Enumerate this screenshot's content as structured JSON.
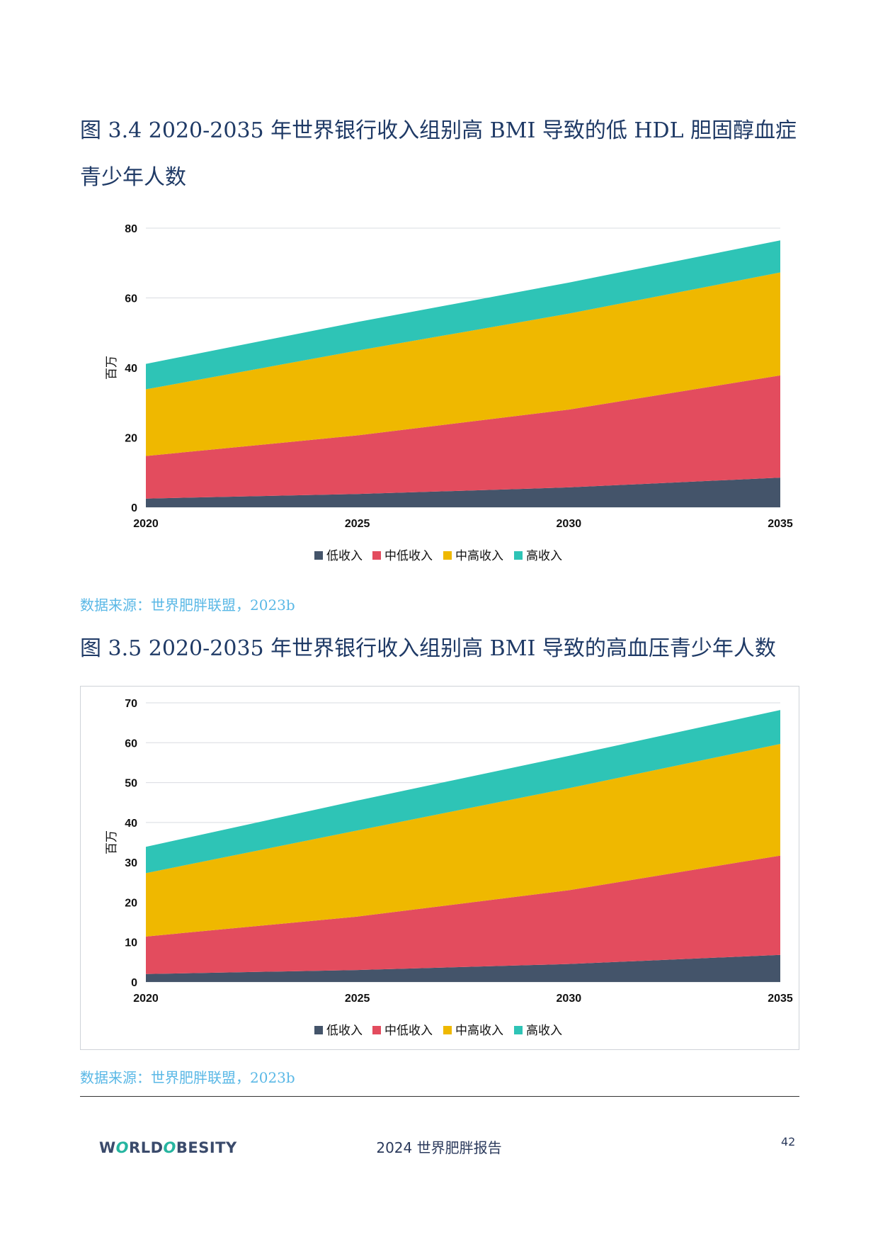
{
  "figures": [
    {
      "title": "图 3.4 2020-2035 年世界银行收入组别高 BMI 导致的低 HDL 胆固醇血症青少年人数",
      "source": "数据来源：世界肥胖联盟，2023b"
    },
    {
      "title": "图 3.5 2020-2035 年世界银行收入组别高 BMI 导致的高血压青少年人数",
      "source": "数据来源：世界肥胖联盟，2023b"
    }
  ],
  "chart_data": [
    {
      "type": "area",
      "stacked": true,
      "x": [
        2020,
        2025,
        2030,
        2035
      ],
      "ylabel": "百万",
      "ylim": [
        0,
        80
      ],
      "yticks": [
        0,
        20,
        40,
        60,
        80
      ],
      "grid": true,
      "legend_position": "bottom",
      "series": [
        {
          "name": "低收入",
          "color": "#44546a",
          "values": [
            2.5,
            3.8,
            5.7,
            8.5
          ]
        },
        {
          "name": "中低收入",
          "color": "#e34c5e",
          "values": [
            12.2,
            16.8,
            22.3,
            29.3
          ]
        },
        {
          "name": "中高收入",
          "color": "#efb800",
          "values": [
            19.1,
            24.3,
            27.5,
            29.5
          ]
        },
        {
          "name": "高收入",
          "color": "#2ec4b6",
          "values": [
            7.3,
            8.2,
            8.9,
            9.2
          ]
        }
      ]
    },
    {
      "type": "area",
      "stacked": true,
      "x": [
        2020,
        2025,
        2030,
        2035
      ],
      "ylabel": "百万",
      "ylim": [
        0,
        70
      ],
      "yticks": [
        0,
        10,
        20,
        30,
        40,
        50,
        60,
        70
      ],
      "grid": true,
      "legend_position": "bottom",
      "series": [
        {
          "name": "低收入",
          "color": "#44546a",
          "values": [
            2.0,
            3.0,
            4.5,
            6.8
          ]
        },
        {
          "name": "中低收入",
          "color": "#e34c5e",
          "values": [
            9.4,
            13.4,
            18.5,
            24.9
          ]
        },
        {
          "name": "中高收入",
          "color": "#efb800",
          "values": [
            15.9,
            21.6,
            25.6,
            28.0
          ]
        },
        {
          "name": "高收入",
          "color": "#2ec4b6",
          "values": [
            6.6,
            7.5,
            8.1,
            8.5
          ]
        }
      ]
    }
  ],
  "footer": {
    "logo_left": "W",
    "logo_o1": "O",
    "logo_mid": "RLD ",
    "logo_o2": "O",
    "logo_right": "BESITY",
    "report": "2024 世界肥胖报告",
    "page": "42"
  }
}
